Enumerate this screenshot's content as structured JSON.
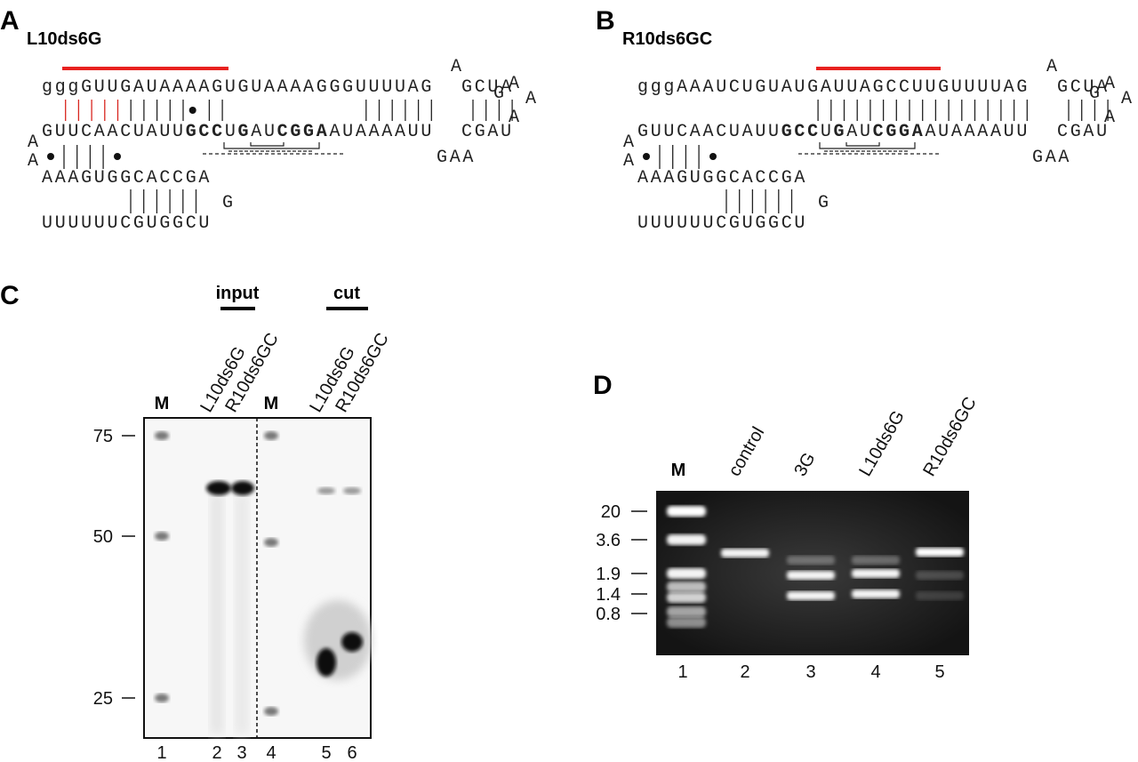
{
  "panel_a": {
    "label": "A",
    "title": "L10ds6G",
    "strand_top": "gggGUUGAUAAAAGUGUAAAAGGGUUUUAG",
    "bulge": "A",
    "hairpin_top": "GCUA",
    "loop": [
      "G",
      "A",
      "A",
      "A"
    ],
    "hairpin_bottom": "CGAU",
    "strand_bottom": [
      {
        "text": "GUUCAACUAUU"
      },
      {
        "text": "GCC",
        "bold": true
      },
      {
        "text": "U"
      },
      {
        "text": "G",
        "bold": true
      },
      {
        "text": "AU"
      },
      {
        "text": "CGGA",
        "bold": true
      },
      {
        "text": "AUAAAAUU"
      }
    ],
    "left_loop": [
      "A",
      "A"
    ],
    "stem2_top": "AAAGUGGCACCGA",
    "stem2_loop": "G",
    "stem2_bottom": "UUUUUUCGUGGCU",
    "internal_loop": "GAA"
  },
  "panel_b": {
    "label": "B",
    "title": "R10ds6GC",
    "strand_top": "gggAAAUCUGUAUGAUUAGCCUUGUUUUAG",
    "bulge": "A",
    "hairpin_top": "GCUA",
    "loop": [
      "G",
      "A",
      "A",
      "A"
    ],
    "hairpin_bottom": "CGAU",
    "strand_bottom": [
      {
        "text": "GUUCAACUAUU"
      },
      {
        "text": "GCC",
        "bold": true
      },
      {
        "text": "U"
      },
      {
        "text": "G",
        "bold": true
      },
      {
        "text": "AU"
      },
      {
        "text": "CGGA",
        "bold": true
      },
      {
        "text": "AUAAAAUU"
      }
    ],
    "left_loop": [
      "A",
      "A"
    ],
    "stem2_top": "AAAGUGGCACCGA",
    "stem2_loop": "G",
    "stem2_bottom": "UUUUUUCGUGGCU",
    "internal_loop": "GAA"
  },
  "panel_c": {
    "label": "C",
    "groups": [
      "input",
      "cut"
    ],
    "lanes": [
      "M",
      "L10ds6G",
      "R10ds6GC",
      "M",
      "L10ds6G",
      "R10ds6GC"
    ],
    "size_markers": [
      75,
      50,
      25
    ],
    "lane_numbers": [
      1,
      2,
      3,
      4,
      5,
      6
    ]
  },
  "panel_d": {
    "label": "D",
    "lanes": [
      "M",
      "control",
      "3G",
      "L10ds6G",
      "R10ds6GC"
    ],
    "size_markers": [
      20,
      3.6,
      1.9,
      1.4,
      0.8
    ],
    "lane_numbers": [
      1,
      2,
      3,
      4,
      5
    ]
  }
}
